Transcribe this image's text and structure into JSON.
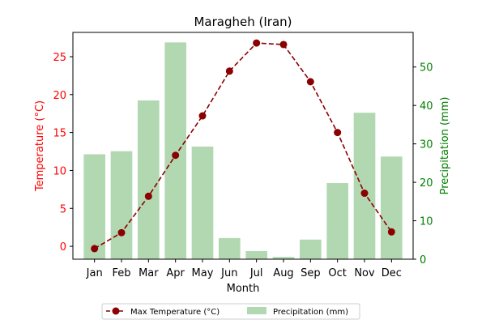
{
  "chart_data": {
    "type": "bar+line",
    "title": "Maragheh (Iran)",
    "xlabel": "Month",
    "categories": [
      "Jan",
      "Feb",
      "Mar",
      "Apr",
      "May",
      "Jun",
      "Jul",
      "Aug",
      "Sep",
      "Oct",
      "Nov",
      "Dec"
    ],
    "left_axis": {
      "label": "Temperature (°C)",
      "color": "#ff0000",
      "ylim": [
        -1.7,
        28.2
      ],
      "ticks": [
        0,
        5,
        10,
        15,
        20,
        25
      ]
    },
    "right_axis": {
      "label": "Precipitation (mm)",
      "color": "#008000",
      "ylim": [
        0,
        59
      ],
      "ticks": [
        0,
        10,
        20,
        30,
        40,
        50
      ]
    },
    "series": [
      {
        "name": "Max Temperature (°C)",
        "kind": "line",
        "axis": "left",
        "color": "#8b0000",
        "style": "dashed",
        "marker": "circle",
        "values": [
          -0.3,
          1.8,
          6.6,
          12.0,
          17.2,
          23.1,
          26.8,
          26.6,
          21.7,
          15.0,
          7.0,
          1.9
        ]
      },
      {
        "name": "Precipitation (mm)",
        "kind": "bar",
        "axis": "right",
        "color": "#b2d8b2",
        "values": [
          27.3,
          28.1,
          41.3,
          56.4,
          29.3,
          5.5,
          2.1,
          0.6,
          5.1,
          19.8,
          38.1,
          26.7
        ]
      }
    ],
    "legend": {
      "position": "bottom-center",
      "columns": 2
    },
    "grid": false
  }
}
